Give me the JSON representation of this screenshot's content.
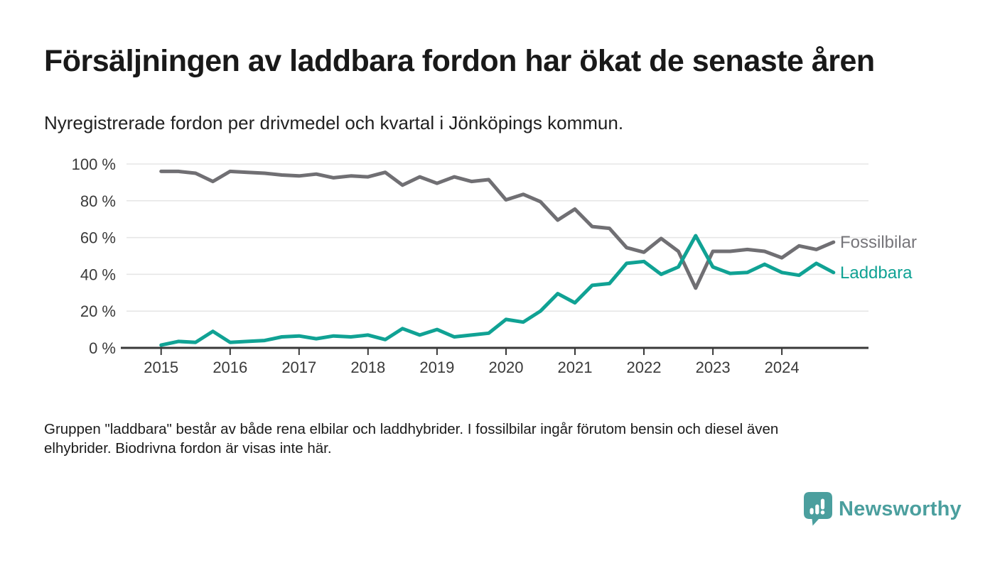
{
  "header": {
    "title": "Försäljningen av laddbara fordon har ökat de senaste åren",
    "subtitle": "Nyregistrerade fordon per drivmedel och kvartal i Jönköpings kommun."
  },
  "chart_data": {
    "type": "line",
    "title": "Försäljningen av laddbara fordon har ökat de senaste åren",
    "subtitle": "Nyregistrerade fordon per drivmedel och kvartal i Jönköpings kommun.",
    "xlabel": "",
    "ylabel": "",
    "unit": "%",
    "ylim": [
      0,
      100
    ],
    "grid": "horizontal",
    "legend_position": "line-end-right",
    "x": [
      "2015 Q1",
      "2015 Q2",
      "2015 Q3",
      "2015 Q4",
      "2016 Q1",
      "2016 Q2",
      "2016 Q3",
      "2016 Q4",
      "2017 Q1",
      "2017 Q2",
      "2017 Q3",
      "2017 Q4",
      "2018 Q1",
      "2018 Q2",
      "2018 Q3",
      "2018 Q4",
      "2019 Q1",
      "2019 Q2",
      "2019 Q3",
      "2019 Q4",
      "2020 Q1",
      "2020 Q2",
      "2020 Q3",
      "2020 Q4",
      "2021 Q1",
      "2021 Q2",
      "2021 Q3",
      "2021 Q4",
      "2022 Q1",
      "2022 Q2",
      "2022 Q3",
      "2022 Q4",
      "2023 Q1",
      "2023 Q2",
      "2023 Q3",
      "2023 Q4",
      "2024 Q1",
      "2024 Q2",
      "2024 Q3",
      "2024 Q4"
    ],
    "x_tick_labels": [
      "2015",
      "2016",
      "2017",
      "2018",
      "2019",
      "2020",
      "2021",
      "2022",
      "2023",
      "2024"
    ],
    "y_ticks": {
      "values": [
        0,
        20,
        40,
        60,
        80,
        100
      ],
      "labels": [
        "0 %",
        "20 %",
        "40 %",
        "60 %",
        "80 %",
        "100 %"
      ]
    },
    "series": [
      {
        "name": "Fossilbilar",
        "color": "#76757a",
        "line_color": "#706f73",
        "values": [
          96,
          96,
          95,
          90.5,
          96,
          95.5,
          95,
          94,
          93.5,
          94.5,
          92.5,
          93.5,
          93,
          95.5,
          88.5,
          93,
          89.5,
          93,
          90.5,
          91.5,
          80.5,
          83.5,
          79.5,
          69.5,
          75.5,
          66,
          65,
          54.5,
          52,
          59.5,
          52.5,
          32.5,
          52.5,
          52.5,
          53.5,
          52.5,
          49,
          55.5,
          53.5,
          57.5
        ]
      },
      {
        "name": "Laddbara",
        "color": "#10a294",
        "line_color": "#10a294",
        "values": [
          1.5,
          3.5,
          3,
          9,
          3,
          3.5,
          4,
          6,
          6.5,
          5,
          6.5,
          6,
          7,
          4.5,
          10.5,
          7,
          10,
          6,
          7,
          8,
          15.5,
          14,
          20,
          29.5,
          24.5,
          34,
          35,
          46,
          47,
          40,
          44,
          61,
          44,
          40.5,
          41,
          45.5,
          41,
          39.5,
          46,
          41
        ]
      }
    ]
  },
  "footnote": {
    "lines": [
      "Gruppen \"laddbara\" består av både rena elbilar och laddhybrider. I fossilbilar ingår förutom bensin och diesel även",
      "elhybrider. Biodrivna fordon är visas inte här."
    ]
  },
  "branding": {
    "logo_text": "Newsworthy",
    "logo_color": "#4b9f9e",
    "logo_icon": "bar-chart-speech-bubble"
  }
}
